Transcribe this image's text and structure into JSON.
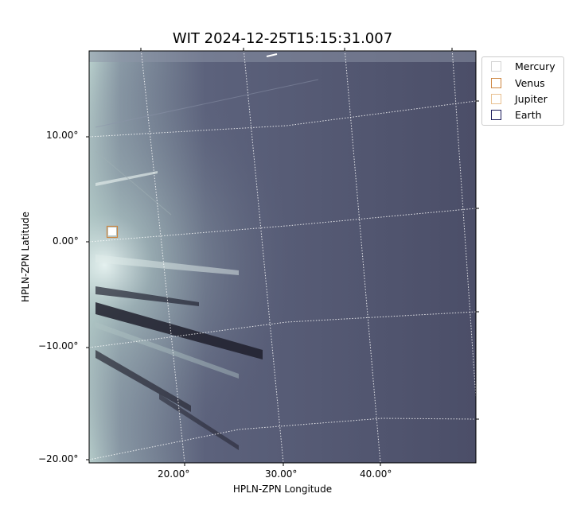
{
  "chart_data": {
    "type": "image",
    "title": "WIT 2024-12-25T15:15:31.007",
    "xlabel": "HPLN-ZPN Longitude",
    "ylabel": "HPLN-ZPN Latitude",
    "xticks": [
      "20.00°",
      "30.00°",
      "40.00°"
    ],
    "yticks": [
      "10.00°",
      "0.00°",
      "−10.00°",
      "−20.00°"
    ],
    "colormap": "bone-like grayscale (dark slate to white)",
    "grid": true,
    "legend_position": "outside-top-right",
    "legend": [
      {
        "name": "Mercury",
        "color": "#d3d3d3"
      },
      {
        "name": "Venus",
        "color": "#cd853f"
      },
      {
        "name": "Jupiter",
        "color": "#ffa500"
      },
      {
        "name": "Earth",
        "color": "#0000ff"
      }
    ],
    "markers": [
      {
        "name": "Venus",
        "color": "#cd853f"
      }
    ]
  }
}
